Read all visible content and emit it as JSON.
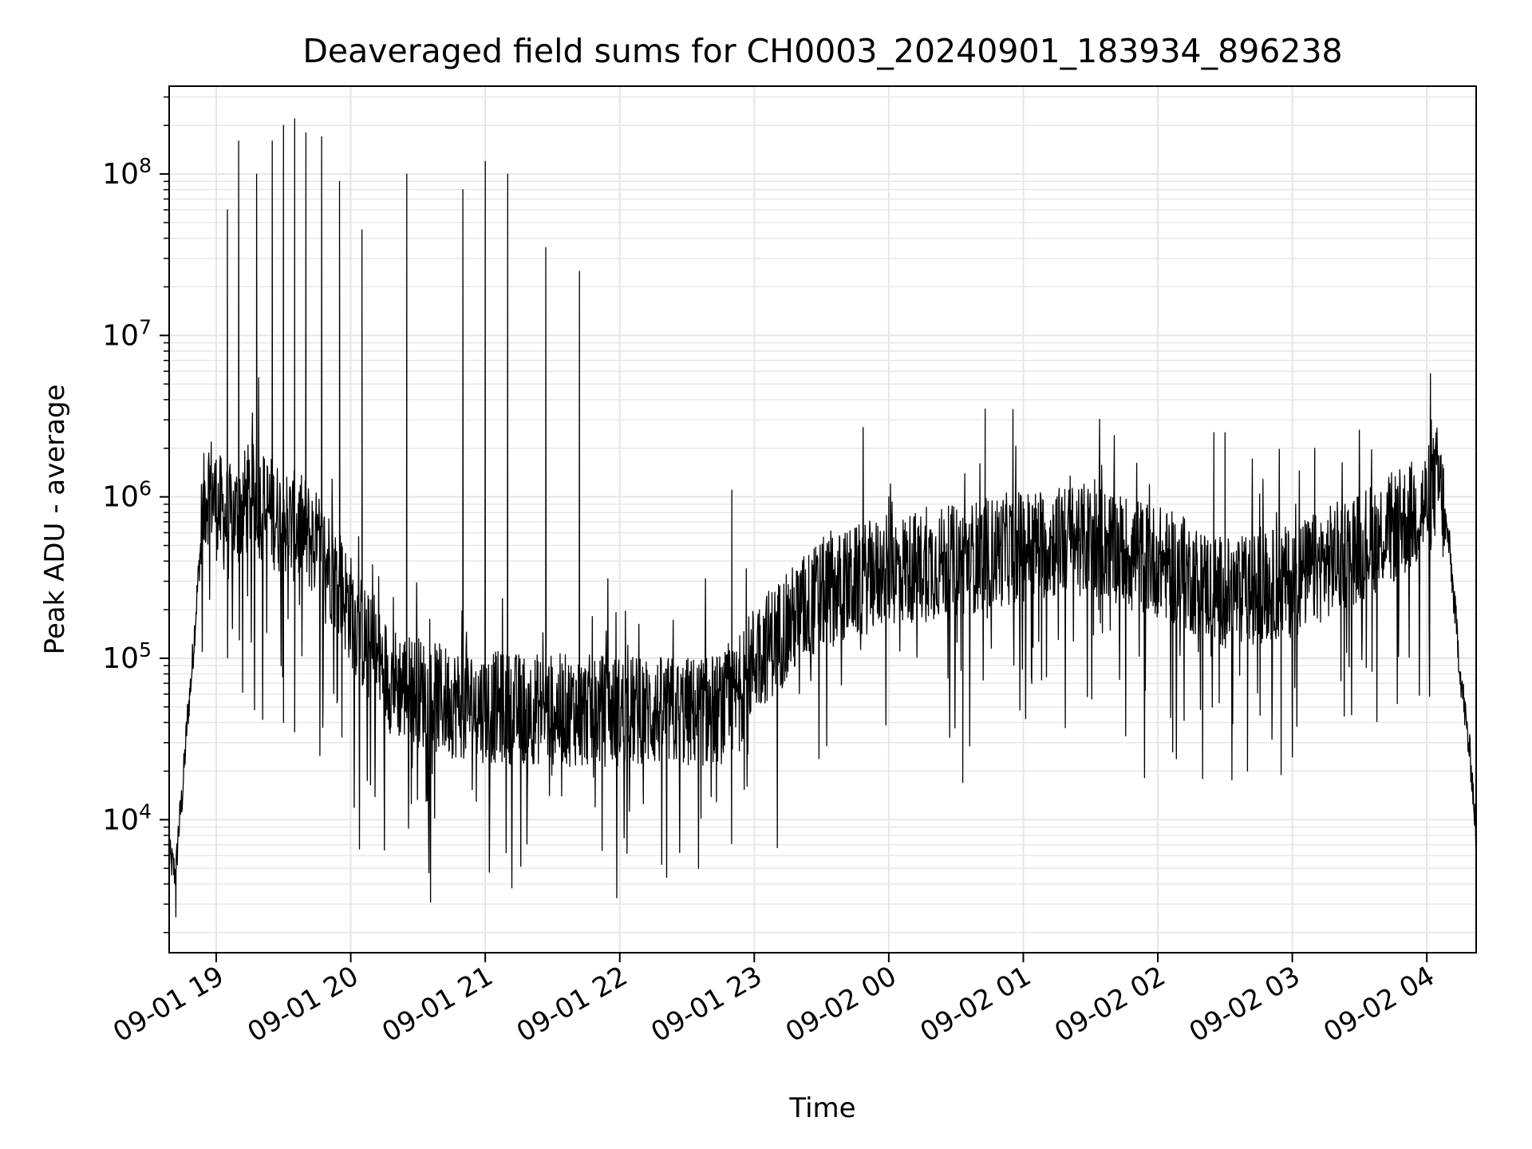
{
  "chart_data": {
    "type": "line",
    "title": "Deaveraged field sums for CH0003_20240901_183934_896238",
    "xlabel": "Time",
    "ylabel": "Peak ADU - average",
    "yscale": "log",
    "grid": true,
    "grid_minor": true,
    "legend": "none",
    "line_color": "#000000",
    "grid_color": "#e6e6e6",
    "xlim": [
      "2024-09-01 18:39",
      "2024-09-02 04:22"
    ],
    "ylim": [
      1500,
      350000000
    ],
    "x_ticks": [
      "2024-09-01 19:00",
      "2024-09-01 20:00",
      "2024-09-01 21:00",
      "2024-09-01 22:00",
      "2024-09-01 23:00",
      "2024-09-02 00:00",
      "2024-09-02 01:00",
      "2024-09-02 02:00",
      "2024-09-02 03:00",
      "2024-09-02 04:00"
    ],
    "x_tick_labels": [
      "09-01 19",
      "09-01 20",
      "09-01 21",
      "09-01 22",
      "09-01 23",
      "09-02 00",
      "09-02 01",
      "09-02 02",
      "09-02 03",
      "09-02 04"
    ],
    "y_ticks": [
      10000,
      100000,
      1000000,
      10000000,
      100000000
    ],
    "y_tick_labels": [
      {
        "base": "10",
        "exp": "4"
      },
      {
        "base": "10",
        "exp": "5"
      },
      {
        "base": "10",
        "exp": "6"
      },
      {
        "base": "10",
        "exp": "7"
      },
      {
        "base": "10",
        "exp": "8"
      }
    ],
    "series": [
      {
        "x": [
          "2024-09-01 18:39",
          "2024-09-01 18:41",
          "2024-09-01 18:42",
          "2024-09-01 18:43",
          "2024-09-01 18:45",
          "2024-09-01 18:47",
          "2024-09-01 18:49",
          "2024-09-01 18:51",
          "2024-09-01 18:53",
          "2024-09-01 18:55",
          "2024-09-01 18:57",
          "2024-09-01 19:00",
          "2024-09-01 19:05",
          "2024-09-01 19:10",
          "2024-09-01 19:15",
          "2024-09-01 19:20",
          "2024-09-01 19:25",
          "2024-09-01 19:30",
          "2024-09-01 19:40",
          "2024-09-01 19:50",
          "2024-09-01 20:00",
          "2024-09-01 20:10",
          "2024-09-01 20:20",
          "2024-09-01 20:40",
          "2024-09-01 21:00",
          "2024-09-01 21:30",
          "2024-09-01 22:00",
          "2024-09-01 22:30",
          "2024-09-01 22:50",
          "2024-09-01 23:00",
          "2024-09-01 23:30",
          "2024-09-02 00:00",
          "2024-09-02 00:30",
          "2024-09-02 01:00",
          "2024-09-02 01:30",
          "2024-09-02 02:00",
          "2024-09-02 02:30",
          "2024-09-02 03:00",
          "2024-09-02 03:30",
          "2024-09-02 03:50",
          "2024-09-02 04:00",
          "2024-09-02 04:05",
          "2024-09-02 04:10",
          "2024-09-02 04:15",
          "2024-09-02 04:20",
          "2024-09-02 04:22"
        ],
        "values": [
          6000,
          5000,
          4500,
          8000,
          15000,
          40000,
          80000,
          200000,
          500000,
          1000000,
          1200000,
          900000,
          700000,
          800000,
          1000000,
          900000,
          800000,
          700000,
          600000,
          400000,
          200000,
          100000,
          70000,
          55000,
          50000,
          48000,
          47000,
          46000,
          50000,
          100000,
          250000,
          350000,
          400000,
          500000,
          550000,
          400000,
          250000,
          300000,
          500000,
          700000,
          900000,
          1300000,
          500000,
          80000,
          20000,
          8000
        ],
        "peaks": [
          {
            "x": "2024-09-01 19:05",
            "value": 60000000
          },
          {
            "x": "2024-09-01 19:10",
            "value": 160000000
          },
          {
            "x": "2024-09-01 19:18",
            "value": 100000000
          },
          {
            "x": "2024-09-01 19:25",
            "value": 160000000
          },
          {
            "x": "2024-09-01 19:30",
            "value": 200000000
          },
          {
            "x": "2024-09-01 19:35",
            "value": 220000000
          },
          {
            "x": "2024-09-01 19:40",
            "value": 180000000
          },
          {
            "x": "2024-09-01 19:47",
            "value": 170000000
          },
          {
            "x": "2024-09-01 19:55",
            "value": 90000000
          },
          {
            "x": "2024-09-01 20:05",
            "value": 45000000
          },
          {
            "x": "2024-09-01 20:25",
            "value": 100000000
          },
          {
            "x": "2024-09-01 20:50",
            "value": 80000000
          },
          {
            "x": "2024-09-01 21:00",
            "value": 120000000
          },
          {
            "x": "2024-09-01 21:10",
            "value": 100000000
          },
          {
            "x": "2024-09-01 21:27",
            "value": 35000000
          },
          {
            "x": "2024-09-01 21:42",
            "value": 25000000
          },
          {
            "x": "2024-09-01 22:50",
            "value": 1100000
          },
          {
            "x": "2024-09-02 00:00",
            "value": 1000000
          },
          {
            "x": "2024-09-02 00:43",
            "value": 3500000
          },
          {
            "x": "2024-09-02 02:25",
            "value": 2500000
          },
          {
            "x": "2024-09-02 02:30",
            "value": 2500000
          },
          {
            "x": "2024-09-02 03:10",
            "value": 2000000
          },
          {
            "x": "2024-09-02 04:02",
            "value": 3000000
          }
        ],
        "dips": [
          {
            "x": "2024-09-01 18:42",
            "value": 2500
          },
          {
            "x": "2024-09-01 19:30",
            "value": 40000
          },
          {
            "x": "2024-09-01 19:35",
            "value": 35000
          },
          {
            "x": "2024-09-02 00:33",
            "value": 17000
          },
          {
            "x": "2024-09-02 02:20",
            "value": 18000
          },
          {
            "x": "2024-09-02 02:40",
            "value": 20000
          },
          {
            "x": "2024-09-02 02:55",
            "value": 19000
          }
        ]
      }
    ]
  }
}
